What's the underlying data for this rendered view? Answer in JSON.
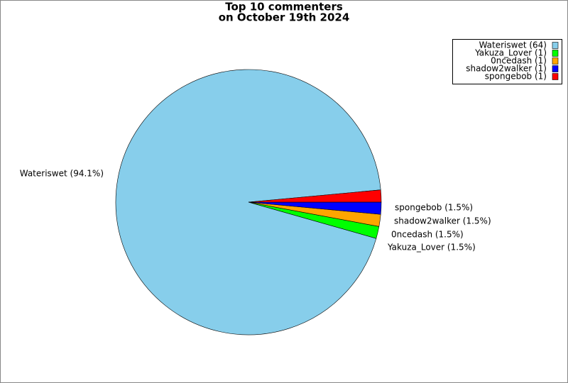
{
  "chart_data": {
    "type": "pie",
    "title": "Top 10 commenters",
    "subtitle": "on October 19th 2024",
    "categories": [
      "Wateriswet",
      "Yakuza_Lover",
      "0ncedash",
      "shadow2walker",
      "spongebob"
    ],
    "values": [
      64,
      1,
      1,
      1,
      1
    ],
    "slice_labels": [
      "Wateriswet (94.1%)",
      "Yakuza_Lover (1.5%)",
      "0ncedash (1.5%)",
      "shadow2walker (1.5%)",
      "spongebob (1.5%)"
    ],
    "legend_labels": [
      "Wateriswet (64)",
      "Yakuza_Lover (1)",
      "0ncedash (1)",
      "shadow2walker (1)",
      "spongebob (1)"
    ],
    "colors": [
      "#87ceeb",
      "#00ff00",
      "#ffa500",
      "#0000ff",
      "#ff0000"
    ],
    "legend": "upper right"
  }
}
